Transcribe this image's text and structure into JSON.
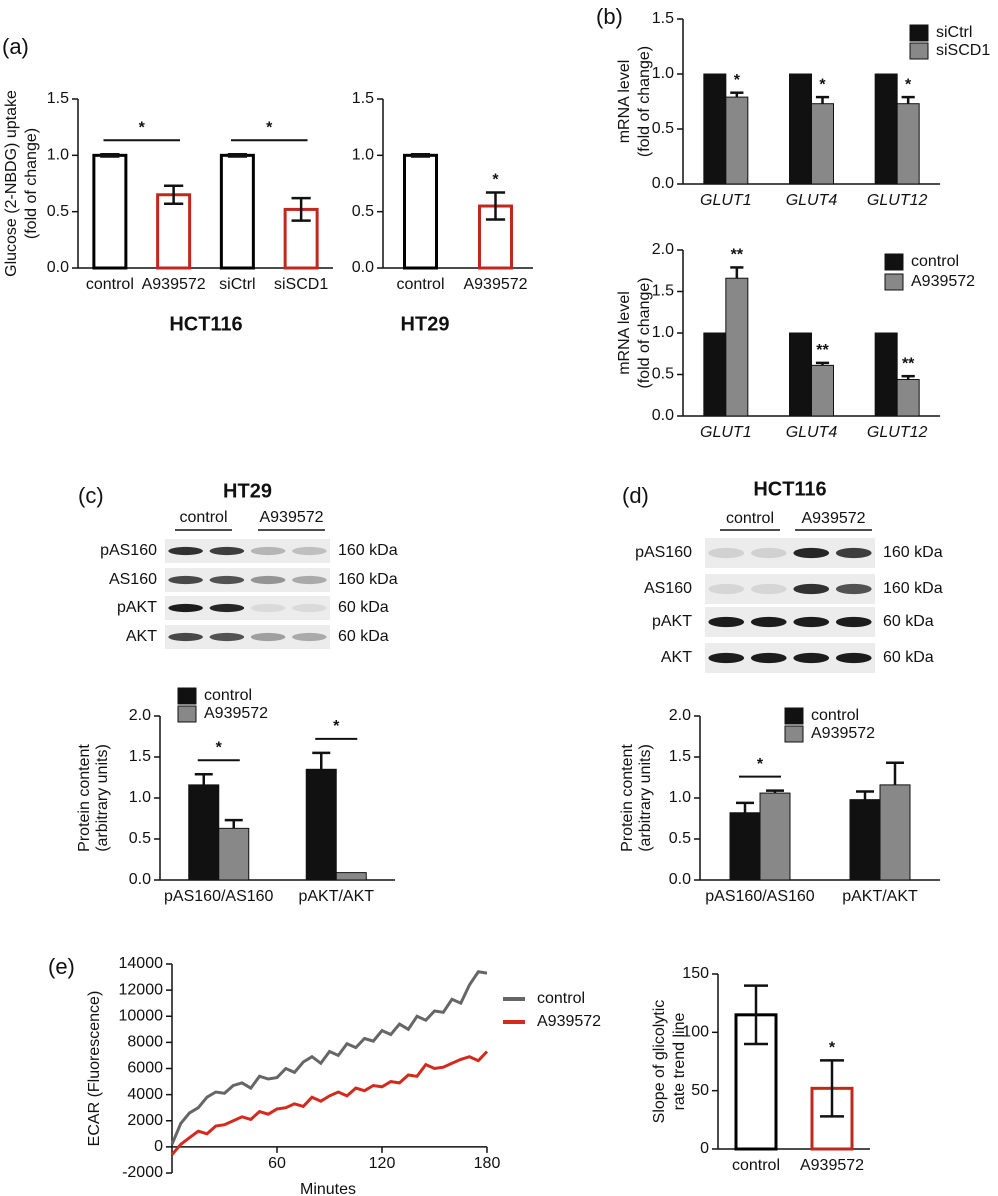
{
  "panel_labels": [
    "(a)",
    "(b)",
    "(c)",
    "(d)",
    "(e)"
  ],
  "blots": [
    {
      "title": "HT29",
      "groups": [
        "control",
        "A939572"
      ],
      "rows": [
        {
          "label": "pAS160",
          "size": "160 kDa"
        },
        {
          "label": "AS160",
          "size": "160 kDa"
        },
        {
          "label": "pAKT",
          "size": "60 kDa"
        },
        {
          "label": "AKT",
          "size": "60 kDa"
        }
      ]
    },
    {
      "title": "HCT116",
      "groups": [
        "control",
        "A939572"
      ],
      "rows": [
        {
          "label": "pAS160",
          "size": "160 kDa"
        },
        {
          "label": "AS160",
          "size": "160 kDa"
        },
        {
          "label": "pAKT",
          "size": "60 kDa"
        },
        {
          "label": "AKT",
          "size": "60 kDa"
        }
      ]
    }
  ],
  "chart_data": [
    {
      "type": "bar",
      "title": "HCT116",
      "ylabel": [
        "Glucose (2-NBDG) uptake",
        "(fold of change)"
      ],
      "categories": [
        "control",
        "A939572",
        "siCtrl",
        "siSCD1"
      ],
      "series": [
        {
          "colors": [
            "#000000",
            "#c0281e",
            "#000000",
            "#c0281e"
          ],
          "values": [
            1.0,
            0.65,
            1.0,
            0.52
          ],
          "errors": [
            0.01,
            0.08,
            0.01,
            0.1
          ]
        }
      ],
      "ylim": [
        0,
        1.5
      ],
      "yticks": [
        {
          "value": 0,
          "label": "0.0"
        },
        0.5,
        {
          "value": 1,
          "label": "1.0"
        },
        1.5
      ],
      "significance": [
        {
          "text": "*",
          "from": [
            0,
            0
          ],
          "to": [
            1,
            0
          ]
        },
        {
          "text": "*",
          "from": [
            2,
            0
          ],
          "to": [
            3,
            0
          ]
        }
      ]
    },
    {
      "type": "bar",
      "title": "HT29",
      "categories": [
        "control",
        "A939572"
      ],
      "series": [
        {
          "colors": [
            "#000000",
            "#c0281e"
          ],
          "values": [
            1.0,
            0.55
          ],
          "errors": [
            0.01,
            0.12
          ]
        }
      ],
      "ylim": [
        0,
        1.5
      ],
      "yticks": [
        {
          "value": 0,
          "label": "0.0"
        },
        0.5,
        {
          "value": 1,
          "label": "1.0"
        },
        1.5
      ],
      "significance": [
        {
          "text": "*",
          "at": [
            1,
            0
          ]
        }
      ]
    },
    {
      "type": "bar",
      "ylabel": [
        "mRNA level",
        "(fold of change)"
      ],
      "categories": [
        "GLUT1",
        "GLUT4",
        "GLUT12"
      ],
      "series": [
        {
          "name": "siCtrl",
          "color": "#111111",
          "values": [
            1.0,
            1.0,
            1.0
          ],
          "errors": [
            0,
            0,
            0
          ]
        },
        {
          "name": "siSCD1",
          "color": "#888888",
          "values": [
            0.79,
            0.73,
            0.73
          ],
          "errors": [
            0.04,
            0.06,
            0.06
          ]
        }
      ],
      "ylim": [
        0,
        1.5
      ],
      "yticks": [
        {
          "value": 0,
          "label": "0.0"
        },
        0.5,
        {
          "value": 1,
          "label": "1.0"
        },
        1.5
      ],
      "significance": [
        {
          "text": "*",
          "at": [
            0,
            1
          ]
        },
        {
          "text": "*",
          "at": [
            1,
            1
          ]
        },
        {
          "text": "*",
          "at": [
            2,
            1
          ]
        }
      ]
    },
    {
      "type": "bar",
      "ylabel": [
        "mRNA level",
        "(fold of change)"
      ],
      "categories": [
        "GLUT1",
        "GLUT4",
        "GLUT12"
      ],
      "series": [
        {
          "name": "control",
          "color": "#111111",
          "values": [
            1.0,
            1.0,
            1.0
          ],
          "errors": [
            0,
            0,
            0
          ]
        },
        {
          "name": "A939572",
          "color": "#888888",
          "values": [
            1.66,
            0.61,
            0.44
          ],
          "errors": [
            0.13,
            0.03,
            0.04
          ]
        }
      ],
      "ylim": [
        0,
        2
      ],
      "yticks": [
        {
          "value": 0,
          "label": "0.0"
        },
        0.5,
        {
          "value": 1,
          "label": "1.0"
        },
        1.5,
        {
          "value": 2,
          "label": "2.0"
        }
      ],
      "significance": [
        {
          "text": "**",
          "at": [
            0,
            1
          ]
        },
        {
          "text": "**",
          "at": [
            1,
            1
          ]
        },
        {
          "text": "**",
          "at": [
            2,
            1
          ]
        }
      ]
    },
    {
      "type": "bar",
      "ylabel": [
        "Protein content",
        "(arbitrary units)"
      ],
      "categories": [
        "pAS160/AS160",
        "pAKT/AKT"
      ],
      "series": [
        {
          "name": "control",
          "color": "#111111",
          "values": [
            1.16,
            1.35
          ],
          "errors": [
            0.13,
            0.2
          ]
        },
        {
          "name": "A939572",
          "color": "#888888",
          "values": [
            0.63,
            0.09
          ],
          "errors": [
            0.1,
            0
          ]
        }
      ],
      "ylim": [
        0,
        2
      ],
      "yticks": [
        {
          "value": 0,
          "label": "0.0"
        },
        0.5,
        {
          "value": 1,
          "label": "1.0"
        },
        1.5,
        {
          "value": 2,
          "label": "2.0"
        }
      ],
      "significance": [
        {
          "text": "*",
          "from": [
            0,
            0
          ],
          "to": [
            0,
            1
          ]
        },
        {
          "text": "*",
          "from": [
            1,
            0
          ],
          "to": [
            1,
            1
          ]
        }
      ]
    },
    {
      "type": "bar",
      "ylabel": [
        "Protein content",
        "(arbitrary units)"
      ],
      "categories": [
        "pAS160/AS160",
        "pAKT/AKT"
      ],
      "series": [
        {
          "name": "control",
          "color": "#111111",
          "values": [
            0.82,
            0.98
          ],
          "errors": [
            0.12,
            0.1
          ]
        },
        {
          "name": "A939572",
          "color": "#888888",
          "values": [
            1.06,
            1.16
          ],
          "errors": [
            0.03,
            0.27
          ]
        }
      ],
      "ylim": [
        0,
        2
      ],
      "yticks": [
        {
          "value": 0,
          "label": "0.0"
        },
        0.5,
        {
          "value": 1,
          "label": "1.0"
        },
        1.5,
        {
          "value": 2,
          "label": "2.0"
        }
      ],
      "significance": [
        {
          "text": "*",
          "from": [
            0,
            0
          ],
          "to": [
            0,
            1
          ]
        }
      ]
    },
    {
      "type": "line",
      "ylabel": [
        "ECAR (Fluorescence)"
      ],
      "xlabel": "Minutes",
      "x": [
        0,
        5,
        10,
        15,
        20,
        25,
        30,
        35,
        40,
        45,
        50,
        55,
        60,
        65,
        70,
        75,
        80,
        85,
        90,
        95,
        100,
        105,
        110,
        115,
        120,
        125,
        130,
        135,
        140,
        145,
        150,
        155,
        160,
        165,
        170,
        175,
        180
      ],
      "series": [
        {
          "name": "control",
          "color": "#666666",
          "values": [
            200,
            1800,
            2600,
            3000,
            3800,
            4200,
            4100,
            4700,
            4900,
            4500,
            5400,
            5200,
            5300,
            6000,
            5700,
            6500,
            6900,
            6400,
            7300,
            7000,
            7900,
            7600,
            8300,
            8100,
            8900,
            8600,
            9400,
            9000,
            10000,
            9700,
            10400,
            10300,
            11300,
            11000,
            12400,
            13400,
            13300
          ]
        },
        {
          "name": "A939572",
          "color": "#d42a1e",
          "values": [
            -600,
            200,
            700,
            1200,
            1000,
            1600,
            1700,
            2000,
            2300,
            2100,
            2700,
            2500,
            2900,
            3000,
            3300,
            3100,
            3800,
            3500,
            3900,
            4200,
            3900,
            4500,
            4300,
            4700,
            4600,
            5000,
            4900,
            5500,
            5400,
            6300,
            6000,
            6100,
            6400,
            6700,
            6900,
            6600,
            7300
          ]
        }
      ],
      "xlim": [
        0,
        180
      ],
      "xticks": [
        60,
        120,
        180
      ],
      "ylim": [
        -2000,
        14000
      ],
      "yticks": [
        -2000,
        0,
        2000,
        4000,
        6000,
        8000,
        10000,
        12000,
        14000
      ]
    },
    {
      "type": "bar",
      "ylabel": [
        "Slope of glicolytic",
        "rate trend line"
      ],
      "categories": [
        "control",
        "A939572"
      ],
      "series": [
        {
          "colors": [
            "#000000",
            "#c0281e"
          ],
          "values": [
            115,
            52
          ],
          "errors": [
            25,
            24
          ]
        }
      ],
      "ylim": [
        0,
        150
      ],
      "yticks": [
        0,
        50,
        100,
        150
      ],
      "significance": [
        {
          "text": "*",
          "at": [
            1,
            0
          ]
        }
      ]
    }
  ]
}
